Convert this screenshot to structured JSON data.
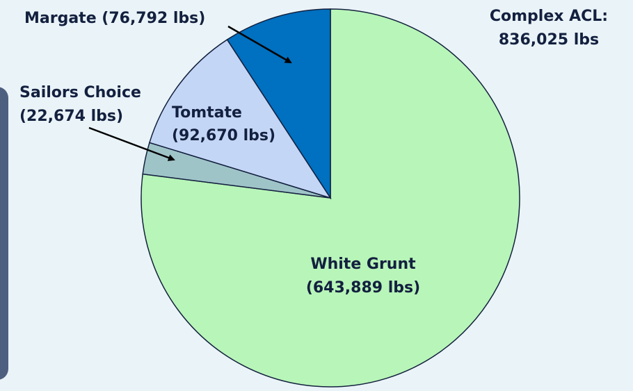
{
  "chart_data": {
    "type": "pie",
    "title": "Complex ACL:",
    "total_label": "836,025 lbs",
    "slices": [
      {
        "name": "White Grunt",
        "value": 643889,
        "value_label": "(643,889 lbs)",
        "color": "#b8f5b8"
      },
      {
        "name": "Sailors Choice",
        "value": 22674,
        "value_label": "(22,674 lbs)",
        "color": "#9fc4c8"
      },
      {
        "name": "Tomtate",
        "value": 92670,
        "value_label": "(92,670 lbs)",
        "color": "#c4d6f5"
      },
      {
        "name": "Margate",
        "value": 76792,
        "value_label": "(76,792 lbs)",
        "color": "#0070c0"
      }
    ],
    "annotations": {
      "margate": "Margate (76,792 lbs)",
      "sailors_choice": "Sailors Choice",
      "sailors_choice_value": "(22,674 lbs)"
    }
  },
  "colors": {
    "background": "#eaf3f7",
    "text": "#13203f",
    "side_panel": "#4d6080"
  }
}
